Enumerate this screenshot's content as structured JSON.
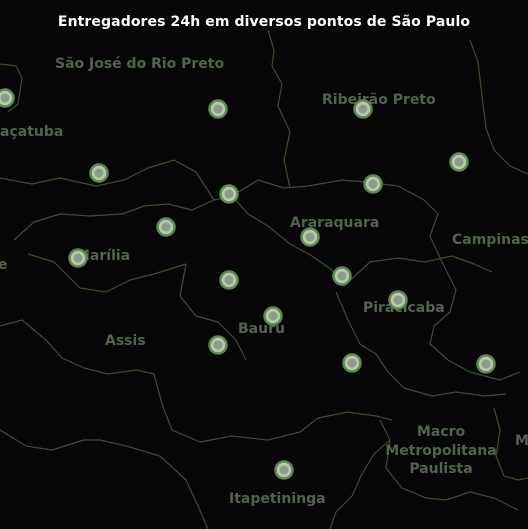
{
  "title": "Entregadores 24h em diversos pontos de São Paulo",
  "regions": [
    {
      "id": "sao-jose-do-rio-preto",
      "label": "São José do Rio Preto"
    },
    {
      "id": "aracatuba",
      "label": "açatuba"
    },
    {
      "id": "ribeirao-preto",
      "label": "Ribeirão Preto"
    },
    {
      "id": "araraquara",
      "label": "Araraquara"
    },
    {
      "id": "campinas",
      "label": "Campinas"
    },
    {
      "id": "marilia",
      "label": "Marília"
    },
    {
      "id": "piracicaba",
      "label": "Piracicaba"
    },
    {
      "id": "bauru",
      "label": "Bauru"
    },
    {
      "id": "assis",
      "label": "Assis"
    },
    {
      "id": "macro-line1",
      "label": "Macro"
    },
    {
      "id": "macro-line2",
      "label": "Metropolitana"
    },
    {
      "id": "macro-line3",
      "label": "Paulista"
    },
    {
      "id": "itapetininga",
      "label": "Itapetininga"
    },
    {
      "id": "edge-left",
      "label": "e"
    },
    {
      "id": "edge-right",
      "label": "M"
    }
  ],
  "markers": {
    "count": 19,
    "icon": "map-marker-dot-icon",
    "colors": {
      "fill": "#b6c9ad",
      "stroke": "#5e8a4f"
    }
  },
  "colors": {
    "background": "#050605",
    "border": "#39512f",
    "label": "#52644d",
    "title": "#ffffff"
  }
}
